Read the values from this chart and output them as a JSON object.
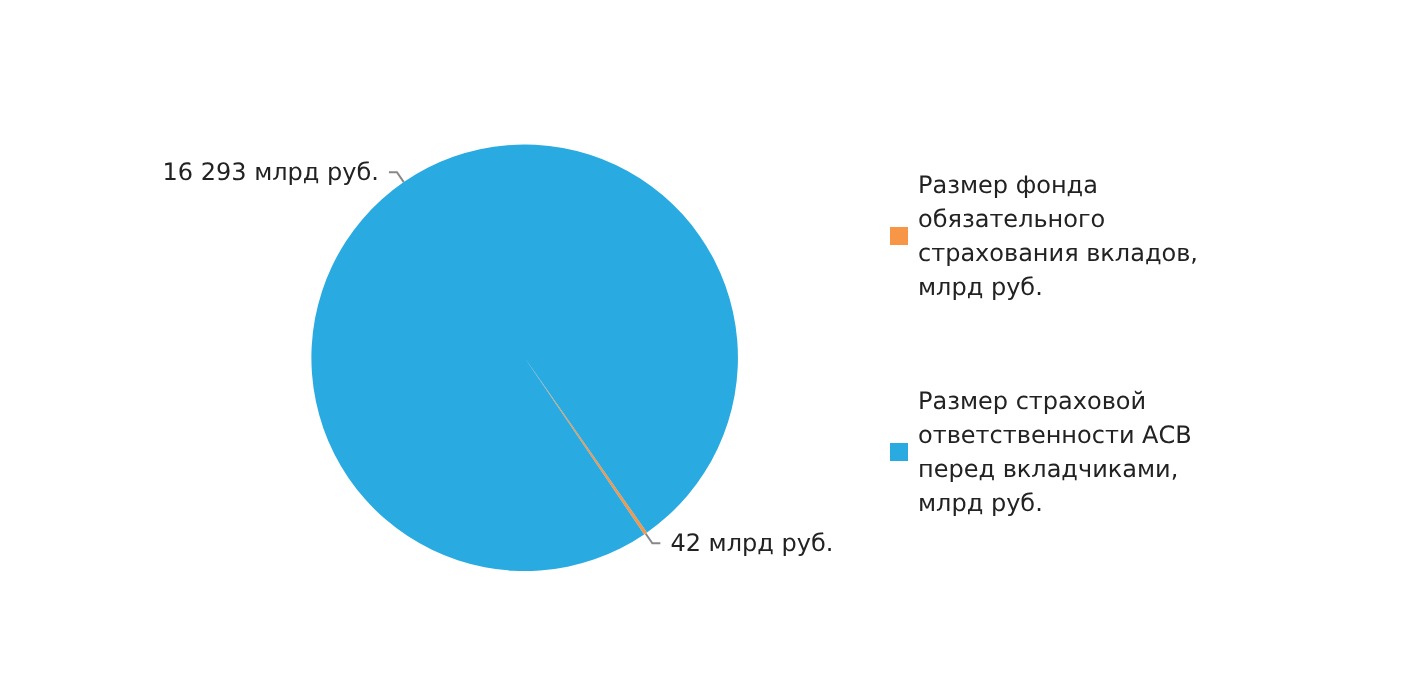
{
  "chart_data": {
    "type": "pie",
    "categories": [
      "Размер фонда обязательного страхования вкладов,  млрд руб.",
      "Размер страховой ответственности АСВ перед вкладчиками, млрд руб."
    ],
    "values": [
      42,
      16293
    ],
    "colors": [
      "#f79646",
      "#29abe2"
    ],
    "value_labels": [
      "42 млрд руб.",
      "16 293 млрд руб."
    ],
    "legend": "right"
  }
}
